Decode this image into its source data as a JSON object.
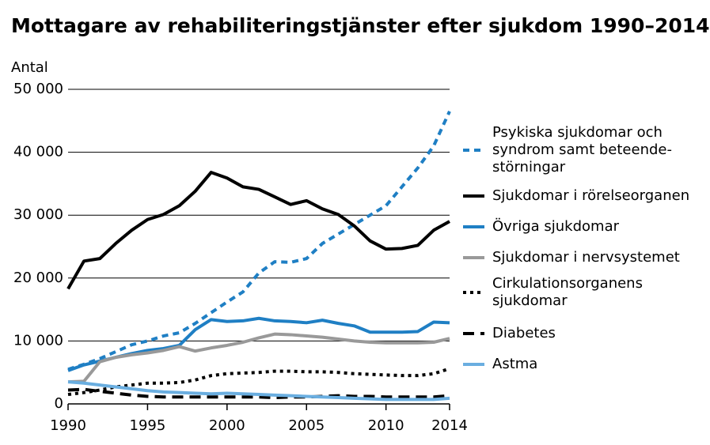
{
  "chart_data": {
    "type": "line",
    "title": "Mottagare av rehabiliteringstjänster efter sjukdom 1990–2014",
    "y_label": "Antal",
    "x": [
      1990,
      1991,
      1992,
      1993,
      1994,
      1995,
      1996,
      1997,
      1998,
      1999,
      2000,
      2001,
      2002,
      2003,
      2004,
      2005,
      2006,
      2007,
      2008,
      2009,
      2010,
      2011,
      2012,
      2013,
      2014
    ],
    "xlim": [
      1990,
      2014
    ],
    "xticks": [
      1990,
      1995,
      2000,
      2005,
      2010,
      2014
    ],
    "ylim": [
      0,
      50000
    ],
    "yticks": [
      0,
      {
        "value": 10000,
        "label": "10 000"
      },
      {
        "value": 20000,
        "label": "20 000"
      },
      {
        "value": 30000,
        "label": "30 000"
      },
      {
        "value": 40000,
        "label": "40 000"
      },
      {
        "value": 50000,
        "label": "50 000"
      }
    ],
    "grid": true,
    "legend": "right",
    "series": [
      {
        "name": "Psykiska sjukdomar och\nsyndrom samt beteende-\nstörningar",
        "color": "#1f7fc4",
        "line_style": "dashed",
        "values": [
          5500,
          6300,
          7200,
          8300,
          9400,
          10000,
          10800,
          11300,
          12800,
          14500,
          16200,
          17800,
          20800,
          22600,
          22500,
          23100,
          25500,
          27000,
          28500,
          30000,
          31500,
          34500,
          37500,
          41000,
          46500
        ]
      },
      {
        "name": "Sjukdomar i rörelseorganen",
        "color": "#000000",
        "line_style": "solid",
        "values": [
          18300,
          22700,
          23100,
          25500,
          27600,
          29300,
          30100,
          31500,
          33800,
          36800,
          35900,
          34500,
          34100,
          32900,
          31700,
          32300,
          31000,
          30100,
          28300,
          25900,
          24600,
          24700,
          25200,
          27600,
          29000
        ]
      },
      {
        "name": "Övriga sjukdomar",
        "color": "#1f7fc4",
        "line_style": "solid",
        "values": [
          5300,
          6200,
          6800,
          7400,
          8000,
          8500,
          8800,
          9300,
          11800,
          13400,
          13100,
          13200,
          13600,
          13200,
          13100,
          12900,
          13300,
          12800,
          12400,
          11400,
          11400,
          11400,
          11500,
          13000,
          12900
        ]
      },
      {
        "name": "Sjukdomar i nervsystemet",
        "color": "#999999",
        "line_style": "solid",
        "values": [
          3500,
          3600,
          6700,
          7400,
          7800,
          8100,
          8500,
          9100,
          8400,
          8900,
          9300,
          9800,
          10500,
          11100,
          11000,
          10800,
          10600,
          10300,
          10000,
          9800,
          9700,
          9700,
          9700,
          9800,
          10400
        ]
      },
      {
        "name": "Cirkulationsorganens\nsjukdomar",
        "color": "#000000",
        "line_style": "dotted",
        "values": [
          1500,
          1800,
          2200,
          2700,
          3000,
          3300,
          3300,
          3400,
          3800,
          4500,
          4800,
          4900,
          5000,
          5200,
          5200,
          5100,
          5100,
          5000,
          4800,
          4700,
          4600,
          4500,
          4500,
          4800,
          5600
        ]
      },
      {
        "name": "Diabetes",
        "color": "#000000",
        "line_style": "longdash",
        "values": [
          2200,
          2300,
          2000,
          1700,
          1400,
          1200,
          1100,
          1100,
          1100,
          1100,
          1100,
          1100,
          1100,
          1000,
          1100,
          1100,
          1200,
          1300,
          1200,
          1200,
          1100,
          1100,
          1100,
          1100,
          1300
        ]
      },
      {
        "name": "Astma",
        "color": "#6aaee0",
        "line_style": "solid",
        "values": [
          3500,
          3300,
          3000,
          2700,
          2400,
          2100,
          1900,
          1800,
          1700,
          1600,
          1700,
          1600,
          1500,
          1400,
          1300,
          1200,
          1100,
          1000,
          900,
          800,
          700,
          700,
          700,
          700,
          900
        ]
      }
    ]
  }
}
